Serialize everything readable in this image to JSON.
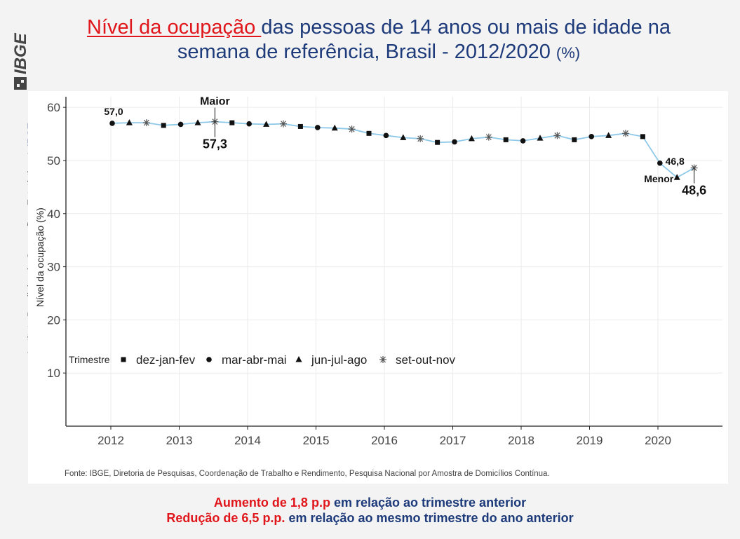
{
  "sidebar": {
    "logo_text": "IBGE",
    "brand_short": "IBGE",
    "institute_name": "Instituto Brasileiro de Geografia e Estatística"
  },
  "title": {
    "highlight": "Nível da ocupação ",
    "rest": "das pessoas de 14 anos ou mais de idade na semana de referência, Brasil - 2012/2020",
    "unit": "(%)"
  },
  "chart_data": {
    "type": "line",
    "ylabel": "Nível da ocupação (%)",
    "ylim": [
      0,
      62
    ],
    "yticks": [
      "10",
      "20",
      "30",
      "40",
      "50",
      "60"
    ],
    "xticks": [
      "2012",
      "2013",
      "2014",
      "2015",
      "2016",
      "2017",
      "2018",
      "2019",
      "2020"
    ],
    "grid": true,
    "line_color": "#8ec8e8",
    "legend": {
      "title": "Trimestre",
      "placement": "lower-left",
      "entries": [
        {
          "label": "dez-jan-fev",
          "marker": "square"
        },
        {
          "label": "mar-abr-mai",
          "marker": "circle"
        },
        {
          "label": "jun-jul-ago",
          "marker": "triangle"
        },
        {
          "label": "set-out-nov",
          "marker": "asterisk"
        }
      ]
    },
    "series": [
      {
        "values": [
          57.0,
          57.1,
          57.1,
          56.6,
          56.8,
          57.1,
          57.3,
          57.1,
          56.9,
          56.8,
          56.9,
          56.4,
          56.2,
          56.1,
          55.9,
          55.1,
          54.7,
          54.3,
          54.1,
          53.4,
          53.5,
          54.1,
          54.4,
          53.9,
          53.7,
          54.2,
          54.7,
          53.9,
          54.5,
          54.7,
          55.1,
          54.5,
          49.5,
          46.8,
          48.6
        ]
      }
    ],
    "annotations": [
      {
        "text": "57,0",
        "index": 0
      },
      {
        "text": "Maior",
        "index": 6
      },
      {
        "text": "57,3",
        "index": 6
      },
      {
        "text": "46,8",
        "index": 33
      },
      {
        "text": "Menor",
        "index": 33
      },
      {
        "text": "48,6",
        "index": 34
      }
    ],
    "source": "Fonte: IBGE, Diretoria de Pesquisas, Coordenação de Trabalho e Rendimento, Pesquisa Nacional por Amostra de Domicílios Contínua."
  },
  "footer": {
    "line1_red": "Aumento de 1,8 p.p",
    "line1_rest": " em relação ao trimestre anterior",
    "line2_red": "Redução de 6,5 p.p.",
    "line2_rest": " em relação ao mesmo trimestre do ano anterior"
  }
}
